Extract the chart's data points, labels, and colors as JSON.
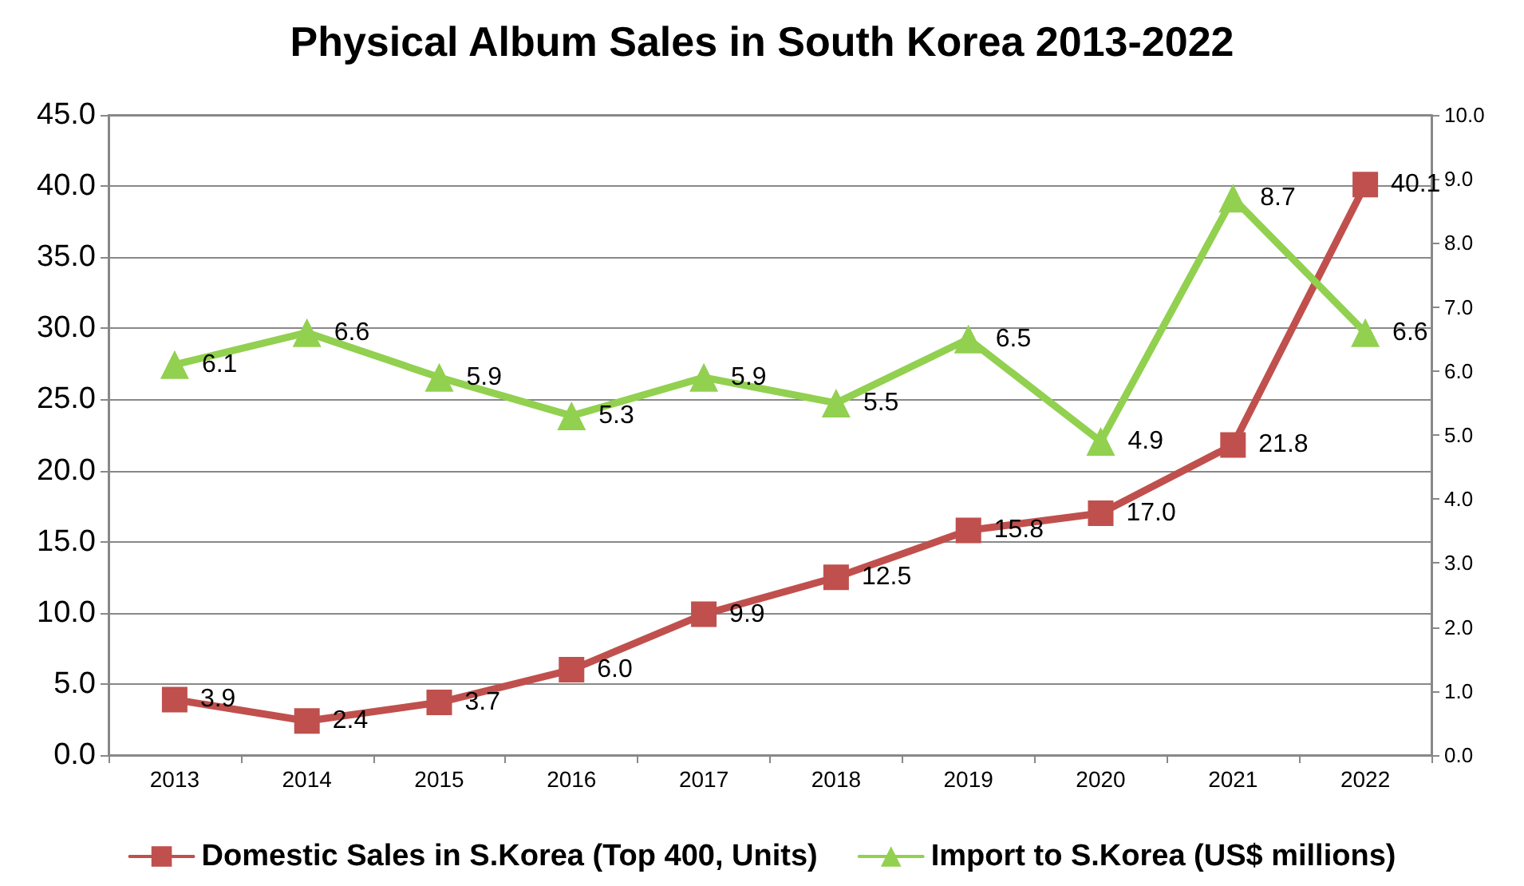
{
  "chart_data": {
    "type": "line",
    "title": "Physical Album Sales in South Korea 2013-2022",
    "categories": [
      "2013",
      "2014",
      "2015",
      "2016",
      "2017",
      "2018",
      "2019",
      "2020",
      "2021",
      "2022"
    ],
    "series": [
      {
        "name": "Domestic Sales in S.Korea (Top 400, Units)",
        "color": "#c0504d",
        "marker": "square",
        "values": [
          3.9,
          2.4,
          3.7,
          6.0,
          9.9,
          12.5,
          15.8,
          17.0,
          21.8,
          40.1
        ],
        "value_labels": [
          "3.9",
          "2.4",
          "3.7",
          "6.0",
          "9.9",
          "12.5",
          "15.8",
          "17.0",
          "21.8",
          "40.1"
        ]
      },
      {
        "name": "Import to S.Korea (US$ millions)",
        "color": "#92d050",
        "marker": "triangle",
        "axis": "y2",
        "values": [
          6.1,
          6.6,
          5.9,
          5.3,
          5.9,
          5.5,
          6.5,
          4.9,
          8.7,
          6.6
        ],
        "value_labels": [
          "6.1",
          "6.6",
          "5.9",
          "5.3",
          "5.9",
          "5.5",
          "6.5",
          "4.9",
          "8.7",
          "6.6"
        ]
      }
    ],
    "ylim": [
      0,
      45
    ],
    "yticks": [
      {
        "value": 0,
        "label": "0.0"
      },
      {
        "value": 5,
        "label": "5.0"
      },
      {
        "value": 10,
        "label": "10.0"
      },
      {
        "value": 15,
        "label": "15.0"
      },
      {
        "value": 20,
        "label": "20.0"
      },
      {
        "value": 25,
        "label": "25.0"
      },
      {
        "value": 30,
        "label": "30.0"
      },
      {
        "value": 35,
        "label": "35.0"
      },
      {
        "value": 40,
        "label": "40.0"
      },
      {
        "value": 45,
        "label": "45.0"
      }
    ],
    "y2lim": [
      0,
      10
    ],
    "y2ticks": [
      {
        "value": 0,
        "label": "0.0"
      },
      {
        "value": 1,
        "label": "1.0"
      },
      {
        "value": 2,
        "label": "2.0"
      },
      {
        "value": 3,
        "label": "3.0"
      },
      {
        "value": 4,
        "label": "4.0"
      },
      {
        "value": 5,
        "label": "5.0"
      },
      {
        "value": 6,
        "label": "6.0"
      },
      {
        "value": 7,
        "label": "7.0"
      },
      {
        "value": 8,
        "label": "8.0"
      },
      {
        "value": 9,
        "label": "9.0"
      },
      {
        "value": 10,
        "label": "10.0"
      }
    ],
    "grid": "y",
    "legend": "bottom",
    "line_style": "solid"
  }
}
